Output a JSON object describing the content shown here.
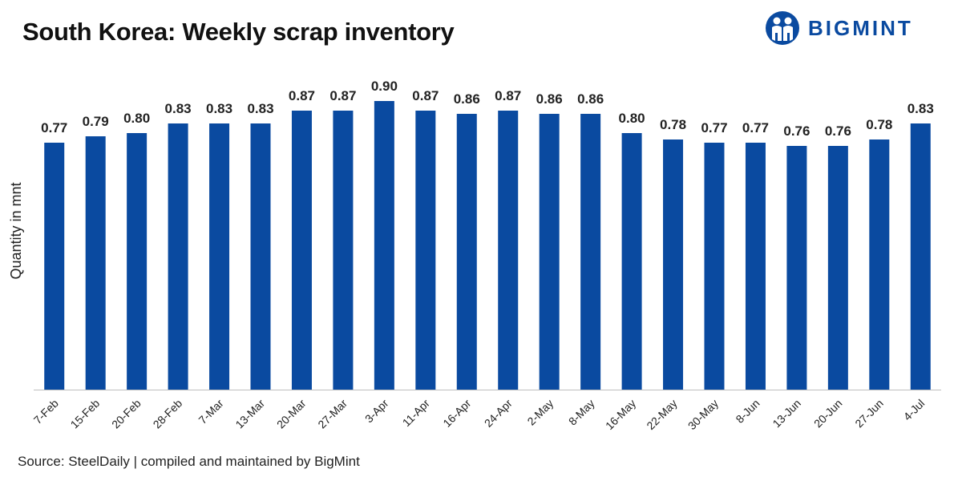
{
  "header": {
    "title": "South Korea: Weekly scrap inventory",
    "logo_text": "BIGMINT"
  },
  "footer": {
    "source": "Source: SteelDaily | compiled and maintained by BigMint"
  },
  "colors": {
    "bar": "#0a4aa0",
    "brand": "#0a4aa0"
  },
  "chart_data": {
    "type": "bar",
    "title": "South Korea: Weekly scrap inventory",
    "xlabel": "",
    "ylabel": "Quantity in mnt",
    "ylim": [
      0,
      0.9
    ],
    "grid": false,
    "legend": "none",
    "categories": [
      "7-Feb",
      "15-Feb",
      "20-Feb",
      "28-Feb",
      "7-Mar",
      "13-Mar",
      "20-Mar",
      "27-Mar",
      "3-Apr",
      "11-Apr",
      "16-Apr",
      "24-Apr",
      "2-May",
      "8-May",
      "16-May",
      "22-May",
      "30-May",
      "8-Jun",
      "13-Jun",
      "20-Jun",
      "27-Jun",
      "4-Jul"
    ],
    "values": [
      0.77,
      0.79,
      0.8,
      0.83,
      0.83,
      0.83,
      0.87,
      0.87,
      0.9,
      0.87,
      0.86,
      0.87,
      0.86,
      0.86,
      0.8,
      0.78,
      0.77,
      0.77,
      0.76,
      0.76,
      0.78,
      0.83
    ],
    "data_labels": [
      "0.77",
      "0.79",
      "0.80",
      "0.83",
      "0.83",
      "0.83",
      "0.87",
      "0.87",
      "0.90",
      "0.87",
      "0.86",
      "0.87",
      "0.86",
      "0.86",
      "0.80",
      "0.78",
      "0.77",
      "0.77",
      "0.76",
      "0.76",
      "0.78",
      "0.83"
    ]
  }
}
